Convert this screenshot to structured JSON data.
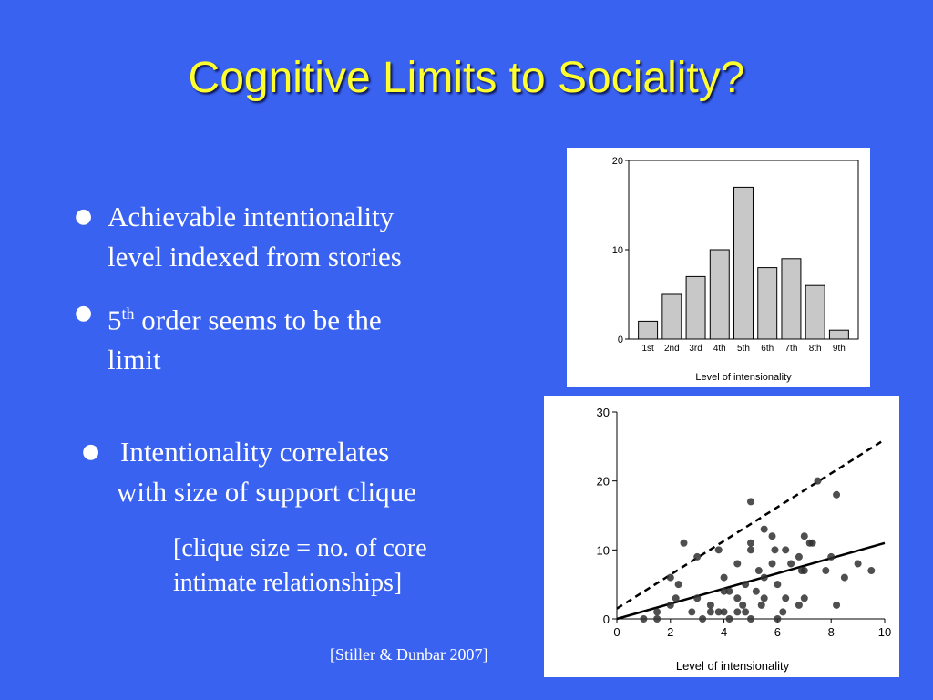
{
  "slide": {
    "title": "Cognitive Limits to Sociality?",
    "bullets": [
      {
        "line1": "Achievable intentionality",
        "line2": "level indexed from stories"
      },
      {
        "pre": "5",
        "sup": "th",
        "post": " order seems to be the",
        "line2": "limit"
      },
      {
        "line1": "Intentionality correlates",
        "line2": "with size of support clique"
      }
    ],
    "note": {
      "line1": "[clique size = no. of core",
      "line2": "intimate relationships]"
    },
    "citation": "[Stiller & Dunbar 2007]",
    "bullet_glyph": "●"
  },
  "chart_data": [
    {
      "type": "bar",
      "categories": [
        "1st",
        "2nd",
        "3rd",
        "4th",
        "5th",
        "6th",
        "7th",
        "8th",
        "9th"
      ],
      "values": [
        2,
        5,
        7,
        10,
        17,
        8,
        9,
        6,
        1
      ],
      "xlabel": "Level of intensionality",
      "ylabel": "",
      "ylim": [
        0,
        20
      ],
      "yticks": [
        "0",
        "10",
        "20"
      ],
      "bar_color": "#c8c8c8"
    },
    {
      "type": "scatter",
      "xlabel": "Level of intensionality",
      "ylabel": "",
      "xlim": [
        0,
        10
      ],
      "ylim": [
        0,
        30
      ],
      "xticks": [
        "0",
        "2",
        "4",
        "6",
        "8",
        "10"
      ],
      "yticks": [
        "0",
        "10",
        "20",
        "30"
      ],
      "points": [
        [
          1,
          0
        ],
        [
          1.5,
          0
        ],
        [
          1.5,
          1
        ],
        [
          2,
          2
        ],
        [
          2,
          6
        ],
        [
          2.2,
          3
        ],
        [
          2.3,
          5
        ],
        [
          2.5,
          11
        ],
        [
          2.8,
          1
        ],
        [
          3,
          3
        ],
        [
          3,
          9
        ],
        [
          3.2,
          0
        ],
        [
          3.5,
          1
        ],
        [
          3.5,
          2
        ],
        [
          3.8,
          1
        ],
        [
          3.8,
          10
        ],
        [
          4,
          1
        ],
        [
          4,
          4
        ],
        [
          4,
          6
        ],
        [
          4.2,
          0
        ],
        [
          4.2,
          4
        ],
        [
          4.5,
          1
        ],
        [
          4.5,
          3
        ],
        [
          4.5,
          8
        ],
        [
          4.7,
          2
        ],
        [
          4.8,
          1
        ],
        [
          4.8,
          5
        ],
        [
          5,
          0
        ],
        [
          5,
          10
        ],
        [
          5,
          17
        ],
        [
          5,
          11
        ],
        [
          5.2,
          4
        ],
        [
          5.3,
          7
        ],
        [
          5.4,
          2
        ],
        [
          5.5,
          3
        ],
        [
          5.5,
          6
        ],
        [
          5.5,
          13
        ],
        [
          5.8,
          8
        ],
        [
          5.8,
          12
        ],
        [
          5.9,
          10
        ],
        [
          6,
          5
        ],
        [
          6,
          0
        ],
        [
          6.2,
          1
        ],
        [
          6.3,
          3
        ],
        [
          6.3,
          10
        ],
        [
          6.5,
          8
        ],
        [
          6.8,
          2
        ],
        [
          6.8,
          9
        ],
        [
          6.9,
          7
        ],
        [
          7,
          3
        ],
        [
          7,
          12
        ],
        [
          7,
          7
        ],
        [
          7.2,
          11
        ],
        [
          7.3,
          11
        ],
        [
          7.5,
          20
        ],
        [
          7.8,
          7
        ],
        [
          8,
          9
        ],
        [
          8.2,
          2
        ],
        [
          8.2,
          18
        ],
        [
          8.5,
          6
        ],
        [
          9,
          8
        ],
        [
          9.5,
          7
        ]
      ],
      "fit_lines": [
        {
          "style": "solid",
          "x": [
            0,
            10
          ],
          "y": [
            0,
            11
          ]
        },
        {
          "style": "dashed",
          "x": [
            0,
            10
          ],
          "y": [
            1.5,
            26
          ]
        }
      ],
      "point_color": "#303030"
    }
  ]
}
